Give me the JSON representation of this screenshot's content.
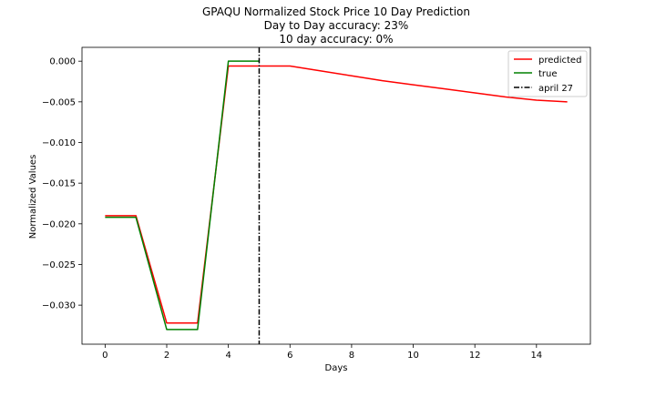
{
  "chart_data": {
    "type": "line",
    "title_lines": [
      "GPAQU Normalized Stock Price 10 Day Prediction",
      "Day to Day accuracy: 23%",
      "10 day accuracy: 0%"
    ],
    "xlabel": "Days",
    "ylabel": "Normalized Values",
    "xlim": [
      -0.75,
      15.75
    ],
    "ylim": [
      -0.0348,
      0.0017
    ],
    "xticks": [
      0,
      2,
      4,
      6,
      8,
      10,
      12,
      14
    ],
    "xtick_labels": [
      "0",
      "2",
      "4",
      "6",
      "8",
      "10",
      "12",
      "14"
    ],
    "yticks": [
      0.0,
      -0.005,
      -0.01,
      -0.015,
      -0.02,
      -0.025,
      -0.03
    ],
    "ytick_labels": [
      "0.000",
      "−0.005",
      "−0.010",
      "−0.015",
      "−0.020",
      "−0.025",
      "−0.030"
    ],
    "series": [
      {
        "name": "predicted",
        "color": "#ff0000",
        "x": [
          0,
          1,
          2,
          3,
          4,
          5,
          6,
          7,
          8,
          9,
          10,
          11,
          12,
          13,
          14,
          15
        ],
        "values": [
          -0.019,
          -0.019,
          -0.0322,
          -0.0322,
          -0.0006,
          -0.0006,
          -0.0006,
          -0.0012,
          -0.0018,
          -0.0024,
          -0.0029,
          -0.0034,
          -0.0039,
          -0.0044,
          -0.0048,
          -0.005
        ]
      },
      {
        "name": "true",
        "color": "#008000",
        "x": [
          0,
          1,
          2,
          3,
          4,
          5
        ],
        "values": [
          -0.0192,
          -0.0192,
          -0.033,
          -0.033,
          0.0,
          0.0
        ]
      }
    ],
    "vline": {
      "name": "april 27",
      "x": 5,
      "color": "#000000",
      "style": "dash-dot"
    },
    "legend": "top-right",
    "grid": false
  }
}
